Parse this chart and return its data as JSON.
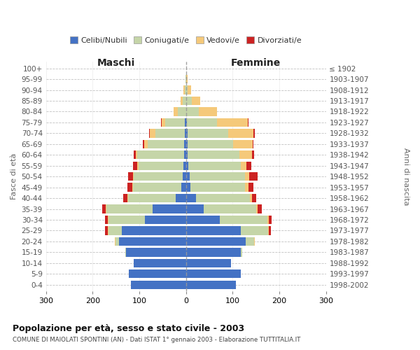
{
  "age_groups": [
    "0-4",
    "5-9",
    "10-14",
    "15-19",
    "20-24",
    "25-29",
    "30-34",
    "35-39",
    "40-44",
    "45-49",
    "50-54",
    "55-59",
    "60-64",
    "65-69",
    "70-74",
    "75-79",
    "80-84",
    "85-89",
    "90-94",
    "95-99",
    "100+"
  ],
  "birth_years": [
    "1998-2002",
    "1993-1997",
    "1988-1992",
    "1983-1987",
    "1978-1982",
    "1973-1977",
    "1968-1972",
    "1963-1967",
    "1958-1962",
    "1953-1957",
    "1948-1952",
    "1943-1947",
    "1938-1942",
    "1933-1937",
    "1928-1932",
    "1923-1927",
    "1918-1922",
    "1913-1917",
    "1908-1912",
    "1903-1907",
    "≤ 1902"
  ],
  "males": {
    "celibi": [
      118,
      123,
      112,
      128,
      143,
      138,
      88,
      72,
      22,
      10,
      7,
      5,
      4,
      4,
      3,
      2,
      0,
      0,
      0,
      0,
      0
    ],
    "coniugati": [
      0,
      0,
      0,
      2,
      8,
      28,
      78,
      98,
      102,
      103,
      105,
      97,
      100,
      78,
      62,
      42,
      17,
      7,
      3,
      1,
      0
    ],
    "vedovi": [
      0,
      0,
      0,
      0,
      2,
      2,
      2,
      2,
      2,
      2,
      2,
      2,
      4,
      8,
      12,
      8,
      9,
      4,
      2,
      0,
      0
    ],
    "divorziati": [
      0,
      0,
      0,
      0,
      0,
      5,
      5,
      8,
      9,
      11,
      10,
      9,
      4,
      2,
      2,
      2,
      1,
      0,
      0,
      0,
      0
    ]
  },
  "females": {
    "nubili": [
      107,
      118,
      97,
      118,
      128,
      118,
      73,
      38,
      22,
      10,
      8,
      5,
      4,
      4,
      3,
      2,
      0,
      0,
      0,
      0,
      0
    ],
    "coniugate": [
      0,
      0,
      0,
      3,
      18,
      58,
      102,
      112,
      115,
      117,
      118,
      112,
      110,
      97,
      87,
      65,
      28,
      13,
      4,
      1,
      0
    ],
    "vedove": [
      0,
      0,
      0,
      0,
      2,
      2,
      2,
      3,
      4,
      7,
      10,
      13,
      28,
      42,
      55,
      65,
      38,
      18,
      7,
      2,
      1
    ],
    "divorziate": [
      0,
      0,
      0,
      0,
      0,
      4,
      7,
      9,
      9,
      10,
      18,
      10,
      4,
      2,
      2,
      2,
      1,
      0,
      0,
      0,
      0
    ]
  },
  "colors": {
    "celibi_nubili": "#4472C4",
    "coniugati": "#C5D5A8",
    "vedovi": "#F5C97A",
    "divorziati": "#CC2222"
  },
  "xlim": 300,
  "title": "Popolazione per età, sesso e stato civile - 2003",
  "subtitle": "COMUNE DI MAIOLATI SPONTINI (AN) - Dati ISTAT 1° gennaio 2003 - Elaborazione TUTTITALIA.IT",
  "ylabel_left": "Fasce di età",
  "ylabel_right": "Anni di nascita",
  "xlabel_left": "Maschi",
  "xlabel_right": "Femmine",
  "bg_color": "#FFFFFF",
  "grid_color": "#CCCCCC",
  "legend_labels": [
    "Celibi/Nubili",
    "Coniugati/e",
    "Vedovi/e",
    "Divorziati/e"
  ]
}
